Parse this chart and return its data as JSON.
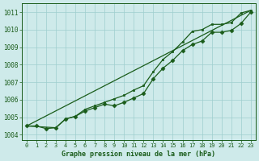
{
  "title": "Graphe pression niveau de la mer (hPa)",
  "background_color": "#ceeaea",
  "grid_color": "#9ecece",
  "line_color": "#1a5c1a",
  "xlim": [
    -0.5,
    23.5
  ],
  "ylim": [
    1003.7,
    1011.5
  ],
  "yticks": [
    1004,
    1005,
    1006,
    1007,
    1008,
    1009,
    1010,
    1011
  ],
  "xticks": [
    0,
    1,
    2,
    3,
    4,
    5,
    6,
    7,
    8,
    9,
    10,
    11,
    12,
    13,
    14,
    15,
    16,
    17,
    18,
    19,
    20,
    21,
    22,
    23
  ],
  "series_main": {
    "x": [
      0,
      1,
      2,
      3,
      4,
      5,
      6,
      7,
      8,
      9,
      10,
      11,
      12,
      13,
      14,
      15,
      16,
      17,
      18,
      19,
      20,
      21,
      22,
      23
    ],
    "y": [
      1004.5,
      1004.5,
      1004.35,
      1004.4,
      1004.9,
      1005.05,
      1005.35,
      1005.55,
      1005.75,
      1005.65,
      1005.85,
      1006.1,
      1006.35,
      1007.2,
      1007.8,
      1008.25,
      1008.8,
      1009.15,
      1009.35,
      1009.85,
      1009.85,
      1009.95,
      1010.35,
      1011.0
    ]
  },
  "series_secondary": {
    "x": [
      0,
      3,
      4,
      5,
      6,
      7,
      8,
      9,
      10,
      11,
      12,
      13,
      14,
      15,
      16,
      17,
      18,
      19,
      20,
      21,
      22,
      23
    ],
    "y": [
      1004.5,
      1004.4,
      1004.9,
      1005.05,
      1005.45,
      1005.65,
      1005.85,
      1006.05,
      1006.25,
      1006.55,
      1006.8,
      1007.6,
      1008.3,
      1008.75,
      1009.3,
      1009.9,
      1010.0,
      1010.3,
      1010.3,
      1010.4,
      1010.95,
      1011.1
    ]
  },
  "series_linear": {
    "x": [
      0,
      23
    ],
    "y": [
      1004.5,
      1011.1
    ]
  }
}
